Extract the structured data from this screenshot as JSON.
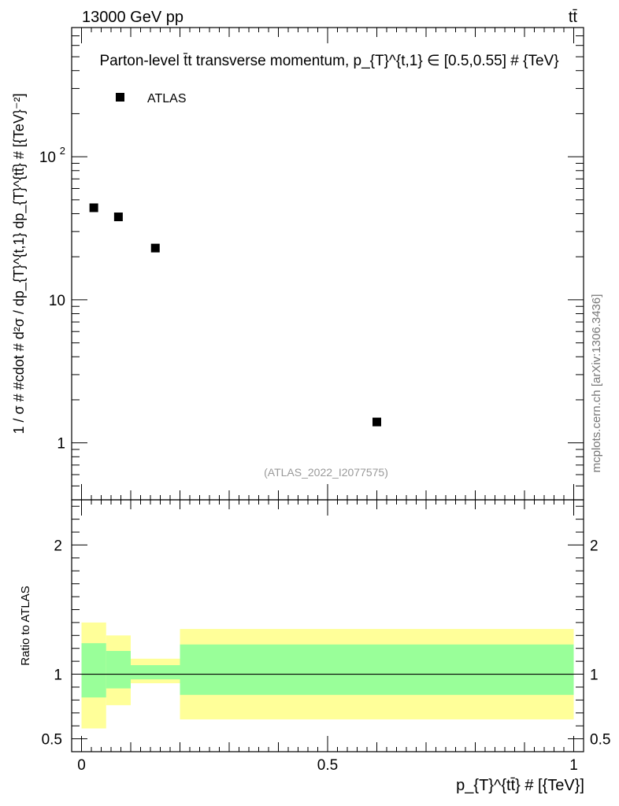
{
  "header": {
    "left": "13000 GeV pp",
    "right": "tt̄"
  },
  "side_label": "mcplots.cern.ch [arXiv:1306.3436]",
  "watermark": "(ATLAS_2022_I2077575)",
  "chart_data": [
    {
      "type": "scatter",
      "panel": "main",
      "title": "Parton-level t̄t transverse momentum, p_{T}^{t,1} ∈ [0.5,0.55] # {TeV}",
      "ylabel": "1 / σ # #cdot # d²σ / dp_{T}^{t,1} dp_{T}^{tt̄} # [{TeV}⁻²]",
      "yscale": "log",
      "ylim": [
        0.4,
        800
      ],
      "xlim": [
        -0.02,
        1.02
      ],
      "yticks": [
        {
          "value": 1,
          "label": "1"
        },
        {
          "value": 10,
          "label": "10"
        },
        {
          "value": 100,
          "label": "10",
          "exp": "2"
        }
      ],
      "legend": {
        "label": "ATLAS",
        "position": "top-left"
      },
      "series": [
        {
          "name": "ATLAS",
          "marker": "square",
          "x": [
            0.025,
            0.075,
            0.15,
            0.6
          ],
          "y": [
            44,
            38,
            23,
            1.4
          ]
        }
      ]
    },
    {
      "type": "area",
      "panel": "ratio",
      "ylabel": "Ratio to ATLAS",
      "xlabel": "p_{T}^{tt̄} # [{TeV}]",
      "ylim": [
        0.4,
        2.35
      ],
      "xlim": [
        -0.02,
        1.02
      ],
      "xticks": [
        {
          "value": 0,
          "label": "0"
        },
        {
          "value": 0.5,
          "label": "0.5"
        },
        {
          "value": 1,
          "label": "1"
        }
      ],
      "yticks": [
        {
          "value": 0.5,
          "label": "0.5"
        },
        {
          "value": 1,
          "label": "1"
        },
        {
          "value": 2,
          "label": "2"
        }
      ],
      "reference_line": 1,
      "bins": [
        0,
        0.05,
        0.1,
        0.2,
        1.0
      ],
      "bands": [
        {
          "name": "stat+syst (outer)",
          "color": "#ffff99",
          "lower": [
            0.58,
            0.76,
            0.93,
            0.65
          ],
          "upper": [
            1.4,
            1.3,
            1.12,
            1.35
          ]
        },
        {
          "name": "stat (inner)",
          "color": "#99ff99",
          "lower": [
            0.82,
            0.89,
            0.96,
            0.84
          ],
          "upper": [
            1.24,
            1.18,
            1.07,
            1.23
          ]
        }
      ]
    }
  ]
}
